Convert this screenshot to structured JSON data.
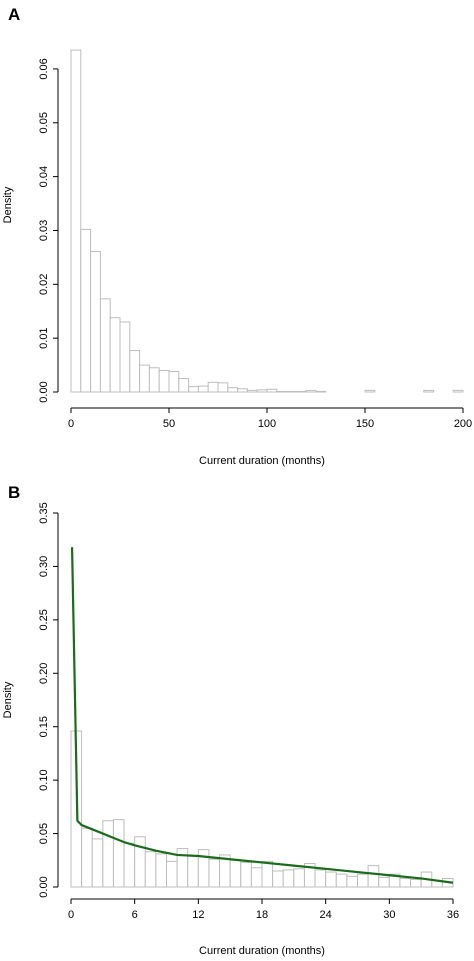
{
  "chart_data": [
    {
      "panel": "A",
      "type": "bar",
      "xlabel": "Current duration (months)",
      "ylabel": "Density",
      "xlim": [
        0,
        200
      ],
      "ylim": [
        0,
        0.065
      ],
      "xticks": [
        "0",
        "50",
        "100",
        "150",
        "200"
      ],
      "yticks": [
        "0.00",
        "0.01",
        "0.02",
        "0.03",
        "0.04",
        "0.05",
        "0.06"
      ],
      "bin_width": 5,
      "bins_start": [
        0,
        5,
        10,
        15,
        20,
        25,
        30,
        35,
        40,
        45,
        50,
        55,
        60,
        65,
        70,
        75,
        80,
        85,
        90,
        95,
        100,
        105,
        110,
        115,
        120,
        125,
        130,
        135,
        140,
        145,
        150,
        155,
        160,
        165,
        170,
        175,
        180,
        185,
        190,
        195
      ],
      "values": [
        0.0635,
        0.0302,
        0.0261,
        0.0173,
        0.0138,
        0.013,
        0.0077,
        0.005,
        0.0045,
        0.004,
        0.0038,
        0.0025,
        0.001,
        0.0011,
        0.0018,
        0.0017,
        0.0008,
        0.0006,
        0.0003,
        0.0004,
        0.0005,
        0.0001,
        0.0001,
        0.0001,
        0.0003,
        0.0001,
        0,
        0,
        0,
        0,
        0.0003,
        0,
        0,
        0,
        0,
        0,
        0.0003,
        0,
        0,
        0.0003
      ]
    },
    {
      "panel": "B",
      "type": "bar",
      "xlabel": "Current duration (months)",
      "ylabel": "Density",
      "xlim": [
        0,
        36
      ],
      "ylim": [
        0,
        0.35
      ],
      "xticks": [
        "0",
        "6",
        "12",
        "18",
        "24",
        "30",
        "36"
      ],
      "yticks": [
        "0.00",
        "0.05",
        "0.10",
        "0.15",
        "0.20",
        "0.25",
        "0.30",
        "0.35"
      ],
      "bin_width": 1,
      "bins_start": [
        0,
        1,
        2,
        3,
        4,
        5,
        6,
        7,
        8,
        9,
        10,
        11,
        12,
        13,
        14,
        15,
        16,
        17,
        18,
        19,
        20,
        21,
        22,
        23,
        24,
        25,
        26,
        27,
        28,
        29,
        30,
        31,
        32,
        33,
        34,
        35
      ],
      "values": [
        0.146,
        0.055,
        0.045,
        0.062,
        0.063,
        0.041,
        0.047,
        0.033,
        0.031,
        0.024,
        0.036,
        0.029,
        0.035,
        0.026,
        0.03,
        0.025,
        0.023,
        0.018,
        0.024,
        0.015,
        0.016,
        0.017,
        0.022,
        0.016,
        0.014,
        0.012,
        0.01,
        0.012,
        0.02,
        0.009,
        0.012,
        0.008,
        0.007,
        0.014,
        0.006,
        0.008
      ],
      "fitted_curve": {
        "x": [
          0.1,
          0.6,
          1,
          2,
          3,
          4,
          5,
          6,
          8,
          10,
          12,
          15,
          18,
          21,
          24,
          27,
          30,
          33,
          36
        ],
        "y": [
          0.318,
          0.062,
          0.058,
          0.054,
          0.05,
          0.046,
          0.042,
          0.039,
          0.034,
          0.03,
          0.029,
          0.026,
          0.023,
          0.02,
          0.017,
          0.014,
          0.011,
          0.008,
          0.004
        ]
      }
    }
  ]
}
